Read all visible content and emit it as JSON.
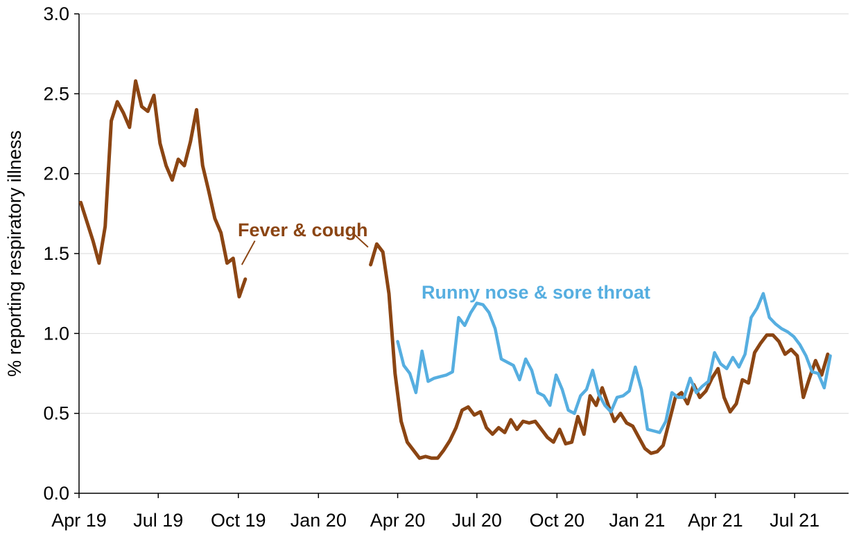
{
  "chart_data": {
    "type": "line",
    "ylabel": "% reporting respiratory illness",
    "xlabel": "",
    "ylim": [
      0,
      3.0
    ],
    "yticks": [
      "0.0",
      "0.5",
      "1.0",
      "1.5",
      "2.0",
      "2.5",
      "3.0"
    ],
    "x_range": [
      "2019-04-01",
      "2021-09-01"
    ],
    "xticks": [
      {
        "label": "Apr 19",
        "date": "2019-04-01"
      },
      {
        "label": "Jul 19",
        "date": "2019-07-01"
      },
      {
        "label": "Oct 19",
        "date": "2019-10-01"
      },
      {
        "label": "Jan 20",
        "date": "2020-01-01"
      },
      {
        "label": "Apr 20",
        "date": "2020-04-01"
      },
      {
        "label": "Jul 20",
        "date": "2020-07-01"
      },
      {
        "label": "Oct 20",
        "date": "2020-10-01"
      },
      {
        "label": "Jan 21",
        "date": "2021-01-01"
      },
      {
        "label": "Apr 21",
        "date": "2021-04-01"
      },
      {
        "label": "Jul 21",
        "date": "2021-07-01"
      }
    ],
    "grid": "horizontal",
    "legend": "none",
    "series": [
      {
        "name": "Fever & cough",
        "color": "#8B4513",
        "segments": [
          [
            [
              "2019-04-03",
              1.82
            ],
            [
              "2019-04-10",
              1.7
            ],
            [
              "2019-04-17",
              1.58
            ],
            [
              "2019-04-24",
              1.44
            ],
            [
              "2019-05-01",
              1.67
            ],
            [
              "2019-05-08",
              2.33
            ],
            [
              "2019-05-15",
              2.45
            ],
            [
              "2019-05-22",
              2.38
            ],
            [
              "2019-05-29",
              2.29
            ],
            [
              "2019-06-05",
              2.58
            ],
            [
              "2019-06-12",
              2.42
            ],
            [
              "2019-06-19",
              2.39
            ],
            [
              "2019-06-26",
              2.49
            ],
            [
              "2019-07-03",
              2.19
            ],
            [
              "2019-07-10",
              2.05
            ],
            [
              "2019-07-17",
              1.96
            ],
            [
              "2019-07-24",
              2.09
            ],
            [
              "2019-07-31",
              2.05
            ],
            [
              "2019-08-07",
              2.2
            ],
            [
              "2019-08-14",
              2.4
            ],
            [
              "2019-08-21",
              2.05
            ],
            [
              "2019-08-28",
              1.89
            ],
            [
              "2019-09-04",
              1.72
            ],
            [
              "2019-09-11",
              1.63
            ],
            [
              "2019-09-18",
              1.44
            ],
            [
              "2019-09-25",
              1.47
            ],
            [
              "2019-10-02",
              1.23
            ],
            [
              "2019-10-09",
              1.34
            ]
          ],
          [
            [
              "2020-03-01",
              1.43
            ],
            [
              "2020-03-08",
              1.56
            ],
            [
              "2020-03-15",
              1.51
            ],
            [
              "2020-03-22",
              1.25
            ],
            [
              "2020-03-29",
              0.75
            ],
            [
              "2020-04-05",
              0.45
            ],
            [
              "2020-04-12",
              0.32
            ],
            [
              "2020-04-19",
              0.27
            ],
            [
              "2020-04-26",
              0.22
            ],
            [
              "2020-05-03",
              0.23
            ],
            [
              "2020-05-10",
              0.22
            ],
            [
              "2020-05-17",
              0.22
            ],
            [
              "2020-05-24",
              0.27
            ],
            [
              "2020-05-31",
              0.33
            ],
            [
              "2020-06-07",
              0.41
            ],
            [
              "2020-06-14",
              0.52
            ],
            [
              "2020-06-21",
              0.54
            ],
            [
              "2020-06-28",
              0.49
            ],
            [
              "2020-07-05",
              0.51
            ],
            [
              "2020-07-12",
              0.41
            ],
            [
              "2020-07-19",
              0.37
            ],
            [
              "2020-07-26",
              0.41
            ],
            [
              "2020-08-02",
              0.38
            ],
            [
              "2020-08-09",
              0.46
            ],
            [
              "2020-08-16",
              0.4
            ],
            [
              "2020-08-23",
              0.45
            ],
            [
              "2020-08-30",
              0.44
            ],
            [
              "2020-09-06",
              0.45
            ],
            [
              "2020-09-13",
              0.4
            ],
            [
              "2020-09-20",
              0.35
            ],
            [
              "2020-09-27",
              0.32
            ],
            [
              "2020-10-04",
              0.4
            ],
            [
              "2020-10-11",
              0.31
            ],
            [
              "2020-10-18",
              0.32
            ],
            [
              "2020-10-25",
              0.48
            ],
            [
              "2020-11-01",
              0.37
            ],
            [
              "2020-11-08",
              0.61
            ],
            [
              "2020-11-15",
              0.55
            ],
            [
              "2020-11-22",
              0.66
            ],
            [
              "2020-11-29",
              0.55
            ],
            [
              "2020-12-06",
              0.45
            ],
            [
              "2020-12-13",
              0.5
            ],
            [
              "2020-12-20",
              0.44
            ],
            [
              "2020-12-27",
              0.42
            ],
            [
              "2021-01-03",
              0.35
            ],
            [
              "2021-01-10",
              0.28
            ],
            [
              "2021-01-17",
              0.25
            ],
            [
              "2021-01-24",
              0.26
            ],
            [
              "2021-01-31",
              0.3
            ],
            [
              "2021-02-07",
              0.45
            ],
            [
              "2021-02-14",
              0.6
            ],
            [
              "2021-02-21",
              0.63
            ],
            [
              "2021-02-28",
              0.56
            ],
            [
              "2021-03-07",
              0.68
            ],
            [
              "2021-03-14",
              0.6
            ],
            [
              "2021-03-21",
              0.64
            ],
            [
              "2021-03-28",
              0.72
            ],
            [
              "2021-04-04",
              0.78
            ],
            [
              "2021-04-11",
              0.6
            ],
            [
              "2021-04-18",
              0.51
            ],
            [
              "2021-04-25",
              0.56
            ],
            [
              "2021-05-02",
              0.71
            ],
            [
              "2021-05-09",
              0.69
            ],
            [
              "2021-05-16",
              0.88
            ],
            [
              "2021-05-23",
              0.94
            ],
            [
              "2021-05-30",
              0.99
            ],
            [
              "2021-06-06",
              0.99
            ],
            [
              "2021-06-13",
              0.95
            ],
            [
              "2021-06-20",
              0.87
            ],
            [
              "2021-06-27",
              0.9
            ],
            [
              "2021-07-04",
              0.86
            ],
            [
              "2021-07-11",
              0.6
            ],
            [
              "2021-07-18",
              0.72
            ],
            [
              "2021-07-25",
              0.83
            ],
            [
              "2021-08-01",
              0.74
            ],
            [
              "2021-08-08",
              0.87
            ]
          ]
        ]
      },
      {
        "name": "Runny nose & sore throat",
        "color": "#56AEE0",
        "segments": [
          [
            [
              "2020-04-01",
              0.95
            ],
            [
              "2020-04-08",
              0.8
            ],
            [
              "2020-04-15",
              0.75
            ],
            [
              "2020-04-22",
              0.63
            ],
            [
              "2020-04-29",
              0.89
            ],
            [
              "2020-05-06",
              0.7
            ],
            [
              "2020-05-13",
              0.72
            ],
            [
              "2020-05-20",
              0.73
            ],
            [
              "2020-05-27",
              0.74
            ],
            [
              "2020-06-03",
              0.76
            ],
            [
              "2020-06-10",
              1.1
            ],
            [
              "2020-06-17",
              1.05
            ],
            [
              "2020-06-24",
              1.13
            ],
            [
              "2020-07-01",
              1.19
            ],
            [
              "2020-07-08",
              1.18
            ],
            [
              "2020-07-15",
              1.13
            ],
            [
              "2020-07-22",
              1.03
            ],
            [
              "2020-07-29",
              0.84
            ],
            [
              "2020-08-05",
              0.82
            ],
            [
              "2020-08-12",
              0.8
            ],
            [
              "2020-08-19",
              0.71
            ],
            [
              "2020-08-26",
              0.84
            ],
            [
              "2020-09-02",
              0.77
            ],
            [
              "2020-09-09",
              0.63
            ],
            [
              "2020-09-16",
              0.61
            ],
            [
              "2020-09-23",
              0.55
            ],
            [
              "2020-09-30",
              0.74
            ],
            [
              "2020-10-07",
              0.65
            ],
            [
              "2020-10-14",
              0.52
            ],
            [
              "2020-10-21",
              0.5
            ],
            [
              "2020-10-28",
              0.61
            ],
            [
              "2020-11-04",
              0.65
            ],
            [
              "2020-11-11",
              0.77
            ],
            [
              "2020-11-18",
              0.62
            ],
            [
              "2020-11-25",
              0.55
            ],
            [
              "2020-12-02",
              0.51
            ],
            [
              "2020-12-09",
              0.6
            ],
            [
              "2020-12-16",
              0.61
            ],
            [
              "2020-12-23",
              0.64
            ],
            [
              "2020-12-30",
              0.79
            ],
            [
              "2021-01-06",
              0.65
            ],
            [
              "2021-01-13",
              0.4
            ],
            [
              "2021-01-20",
              0.39
            ],
            [
              "2021-01-27",
              0.38
            ],
            [
              "2021-02-03",
              0.45
            ],
            [
              "2021-02-10",
              0.63
            ],
            [
              "2021-02-17",
              0.6
            ],
            [
              "2021-02-24",
              0.6
            ],
            [
              "2021-03-03",
              0.72
            ],
            [
              "2021-03-10",
              0.63
            ],
            [
              "2021-03-17",
              0.67
            ],
            [
              "2021-03-24",
              0.7
            ],
            [
              "2021-03-31",
              0.88
            ],
            [
              "2021-04-07",
              0.81
            ],
            [
              "2021-04-14",
              0.78
            ],
            [
              "2021-04-21",
              0.85
            ],
            [
              "2021-04-28",
              0.79
            ],
            [
              "2021-05-05",
              0.87
            ],
            [
              "2021-05-12",
              1.1
            ],
            [
              "2021-05-19",
              1.16
            ],
            [
              "2021-05-26",
              1.25
            ],
            [
              "2021-06-02",
              1.1
            ],
            [
              "2021-06-09",
              1.06
            ],
            [
              "2021-06-16",
              1.03
            ],
            [
              "2021-06-23",
              1.01
            ],
            [
              "2021-06-30",
              0.98
            ],
            [
              "2021-07-07",
              0.93
            ],
            [
              "2021-07-14",
              0.86
            ],
            [
              "2021-07-21",
              0.76
            ],
            [
              "2021-07-28",
              0.75
            ],
            [
              "2021-08-04",
              0.66
            ],
            [
              "2021-08-11",
              0.86
            ]
          ]
        ]
      }
    ],
    "annotations": [
      {
        "text": "Fever & cough",
        "series": 0,
        "leaders": [
          [
            [
              "2019-10-05",
              1.43
            ],
            [
              "2019-10-20",
              1.58
            ]
          ],
          [
            [
              "2020-02-09",
              1.63
            ],
            [
              "2020-02-27",
              1.54
            ]
          ]
        ]
      },
      {
        "text": "Runny nose & sore throat",
        "series": 1,
        "leaders": []
      }
    ]
  }
}
